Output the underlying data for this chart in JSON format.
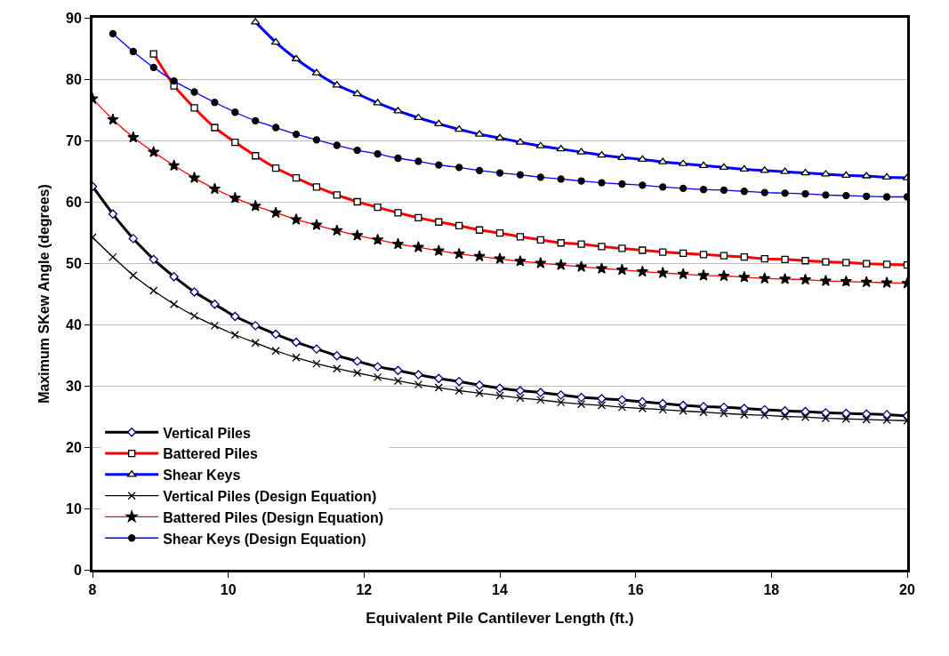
{
  "chart_data": {
    "type": "line",
    "xlabel": "Equivalent Pile Cantilever Length (ft.)",
    "ylabel": "Maximum SKew Angle (degrees)",
    "xlim": [
      8,
      20
    ],
    "xticks": [
      8,
      10,
      12,
      14,
      16,
      18,
      20
    ],
    "ylim": [
      0,
      90
    ],
    "yticks": [
      0,
      10,
      20,
      30,
      40,
      50,
      60,
      70,
      80,
      90
    ],
    "grid": "y",
    "legend": "bottom left",
    "series": [
      {
        "name": "Vertical Piles",
        "color": "#000000",
        "marker": "diamond",
        "x": [
          8,
          8.3,
          8.6,
          8.9,
          9.2,
          9.5,
          9.8,
          10.1,
          10.4,
          10.7,
          11,
          11.3,
          11.6,
          11.9,
          12.2,
          12.5,
          12.8,
          13.1,
          13.4,
          13.7,
          14,
          14.3,
          14.6,
          14.9,
          15.2,
          15.5,
          15.8,
          16.1,
          16.4,
          16.7,
          17,
          17.3,
          17.6,
          17.9,
          18.2,
          18.5,
          18.8,
          19.1,
          19.4,
          19.7,
          20
        ],
        "values": [
          62.5,
          58,
          54,
          50.6,
          47.8,
          45.3,
          43.3,
          41.3,
          39.8,
          38.4,
          37.1,
          36,
          34.9,
          34,
          33.1,
          32.5,
          31.8,
          31.2,
          30.7,
          30.1,
          29.6,
          29.2,
          28.9,
          28.5,
          28.1,
          27.9,
          27.7,
          27.4,
          27.1,
          26.8,
          26.6,
          26.5,
          26.3,
          26.1,
          25.9,
          25.8,
          25.6,
          25.5,
          25.4,
          25.3,
          25.1
        ]
      },
      {
        "name": "Battered Piles",
        "color": "#ff0000",
        "marker": "square",
        "x": [
          8.9,
          9.2,
          9.5,
          9.8,
          10.1,
          10.4,
          10.7,
          11,
          11.3,
          11.6,
          11.9,
          12.2,
          12.5,
          12.8,
          13.1,
          13.4,
          13.7,
          14,
          14.3,
          14.6,
          14.9,
          15.2,
          15.5,
          15.8,
          16.1,
          16.4,
          16.7,
          17,
          17.3,
          17.6,
          17.9,
          18.2,
          18.5,
          18.8,
          19.1,
          19.4,
          19.7,
          20
        ],
        "values": [
          84.1,
          78.9,
          75.3,
          72.1,
          69.7,
          67.5,
          65.5,
          63.9,
          62.4,
          61.1,
          60,
          59.1,
          58.2,
          57.4,
          56.7,
          56.1,
          55.4,
          54.9,
          54.3,
          53.8,
          53.3,
          53.1,
          52.7,
          52.4,
          52.1,
          51.8,
          51.6,
          51.4,
          51.2,
          51,
          50.7,
          50.6,
          50.4,
          50.2,
          50.1,
          49.9,
          49.8,
          49.7
        ]
      },
      {
        "name": "Shear Keys",
        "color": "#0000ff",
        "marker": "triangle",
        "x": [
          10.4,
          10.7,
          11,
          11.3,
          11.6,
          11.9,
          12.2,
          12.5,
          12.8,
          13.1,
          13.4,
          13.7,
          14,
          14.3,
          14.6,
          14.9,
          15.2,
          15.5,
          15.8,
          16.1,
          16.4,
          16.7,
          17,
          17.3,
          17.6,
          17.9,
          18.2,
          18.5,
          18.8,
          19.1,
          19.4,
          19.7,
          20
        ],
        "values": [
          89.3,
          86,
          83.3,
          81,
          79,
          77.6,
          76.1,
          74.8,
          73.7,
          72.7,
          71.8,
          71,
          70.4,
          69.7,
          69.1,
          68.6,
          68.1,
          67.6,
          67.2,
          66.9,
          66.5,
          66.2,
          65.9,
          65.6,
          65.3,
          65.1,
          64.9,
          64.7,
          64.5,
          64.3,
          64.2,
          64,
          63.9
        ]
      },
      {
        "name": "Vertical Piles (Design Equation)",
        "color": "#000000",
        "marker": "cross",
        "x": [
          8,
          8.3,
          8.6,
          8.9,
          9.2,
          9.5,
          9.8,
          10.1,
          10.4,
          10.7,
          11,
          11.3,
          11.6,
          11.9,
          12.2,
          12.5,
          12.8,
          13.1,
          13.4,
          13.7,
          14,
          14.3,
          14.6,
          14.9,
          15.2,
          15.5,
          15.8,
          16.1,
          16.4,
          16.7,
          17,
          17.3,
          17.6,
          17.9,
          18.2,
          18.5,
          18.8,
          19.1,
          19.4,
          19.7,
          20
        ],
        "values": [
          54.2,
          51,
          48,
          45.5,
          43.3,
          41.4,
          39.8,
          38.3,
          37,
          35.7,
          34.6,
          33.6,
          32.8,
          32.1,
          31.4,
          30.8,
          30.2,
          29.7,
          29.2,
          28.8,
          28.4,
          28,
          27.7,
          27.3,
          27,
          26.8,
          26.5,
          26.3,
          26.1,
          25.9,
          25.7,
          25.5,
          25.3,
          25.2,
          25,
          24.9,
          24.7,
          24.6,
          24.5,
          24.4,
          24.3
        ]
      },
      {
        "name": "Battered Piles (Design Equation)",
        "color": "#ff0000",
        "marker": "star",
        "x": [
          8,
          8.3,
          8.6,
          8.9,
          9.2,
          9.5,
          9.8,
          10.1,
          10.4,
          10.7,
          11,
          11.3,
          11.6,
          11.9,
          12.2,
          12.5,
          12.8,
          13.1,
          13.4,
          13.7,
          14,
          14.3,
          14.6,
          14.9,
          15.2,
          15.5,
          15.8,
          16.1,
          16.4,
          16.7,
          17,
          17.3,
          17.6,
          17.9,
          18.2,
          18.5,
          18.8,
          19.1,
          19.4,
          19.7,
          20
        ],
        "values": [
          76.8,
          73.4,
          70.5,
          68.1,
          65.9,
          63.9,
          62.1,
          60.6,
          59.3,
          58.2,
          57.1,
          56.2,
          55.3,
          54.5,
          53.8,
          53.1,
          52.6,
          52,
          51.5,
          51.1,
          50.7,
          50.3,
          50,
          49.7,
          49.4,
          49.1,
          48.9,
          48.6,
          48.4,
          48.2,
          48,
          47.9,
          47.7,
          47.5,
          47.4,
          47.3,
          47.1,
          47,
          46.9,
          46.8,
          46.7
        ]
      },
      {
        "name": "Shear Keys (Design Equation)",
        "color": "#0000ff",
        "marker": "circle",
        "x": [
          8.3,
          8.6,
          8.9,
          9.2,
          9.5,
          9.8,
          10.1,
          10.4,
          10.7,
          11,
          11.3,
          11.6,
          11.9,
          12.2,
          12.5,
          12.8,
          13.1,
          13.4,
          13.7,
          14,
          14.3,
          14.6,
          14.9,
          15.2,
          15.5,
          15.8,
          16.1,
          16.4,
          16.7,
          17,
          17.3,
          17.6,
          17.9,
          18.2,
          18.5,
          18.8,
          19.1,
          19.4,
          19.7,
          20
        ],
        "values": [
          87.4,
          84.5,
          81.9,
          79.7,
          77.9,
          76.2,
          74.6,
          73.2,
          72.1,
          71,
          70.1,
          69.2,
          68.4,
          67.8,
          67.1,
          66.6,
          66,
          65.6,
          65.1,
          64.7,
          64.4,
          64,
          63.7,
          63.4,
          63.1,
          62.9,
          62.7,
          62.4,
          62.2,
          62,
          61.9,
          61.7,
          61.5,
          61.4,
          61.3,
          61.1,
          61,
          60.9,
          60.8,
          60.8
        ]
      }
    ]
  }
}
